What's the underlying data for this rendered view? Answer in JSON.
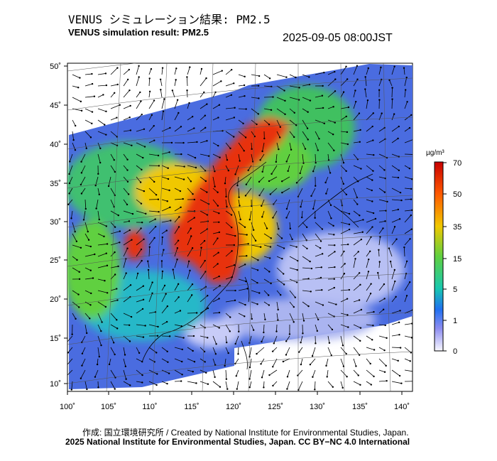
{
  "header": {
    "title_jp": "VENUS シミュレーション結果: PM2.5",
    "title_en": "VENUS simulation result: PM2.5",
    "timestamp": "2025-09-05 08:00JST"
  },
  "map": {
    "lat_labels": [
      "50˚",
      "45˚",
      "40˚",
      "35˚",
      "30˚",
      "25˚",
      "20˚",
      "15˚",
      "10˚"
    ],
    "lon_labels": [
      "100˚",
      "105˚",
      "110˚",
      "115˚",
      "120˚",
      "125˚",
      "130˚",
      "135˚",
      "140˚"
    ],
    "land_color": "#ffffff",
    "outline_color": "#000000"
  },
  "legend": {
    "unit": "µg/m³",
    "ticks": [
      "70",
      "50",
      "35",
      "15",
      "5",
      "1",
      "0"
    ],
    "colors": [
      "#c80000",
      "#ff5a00",
      "#f0c800",
      "#60d040",
      "#18c8b0",
      "#2070f0",
      "#8c8cf0",
      "#f0f0ff"
    ]
  },
  "footer": {
    "credit_line1": "作成: 国立環境研究所 / Created by National Institute for Environmental Studies, Japan.",
    "credit_line2": "2025 National Institute for Environmental Studies, Japan. CC BY−NC 4.0 International"
  }
}
